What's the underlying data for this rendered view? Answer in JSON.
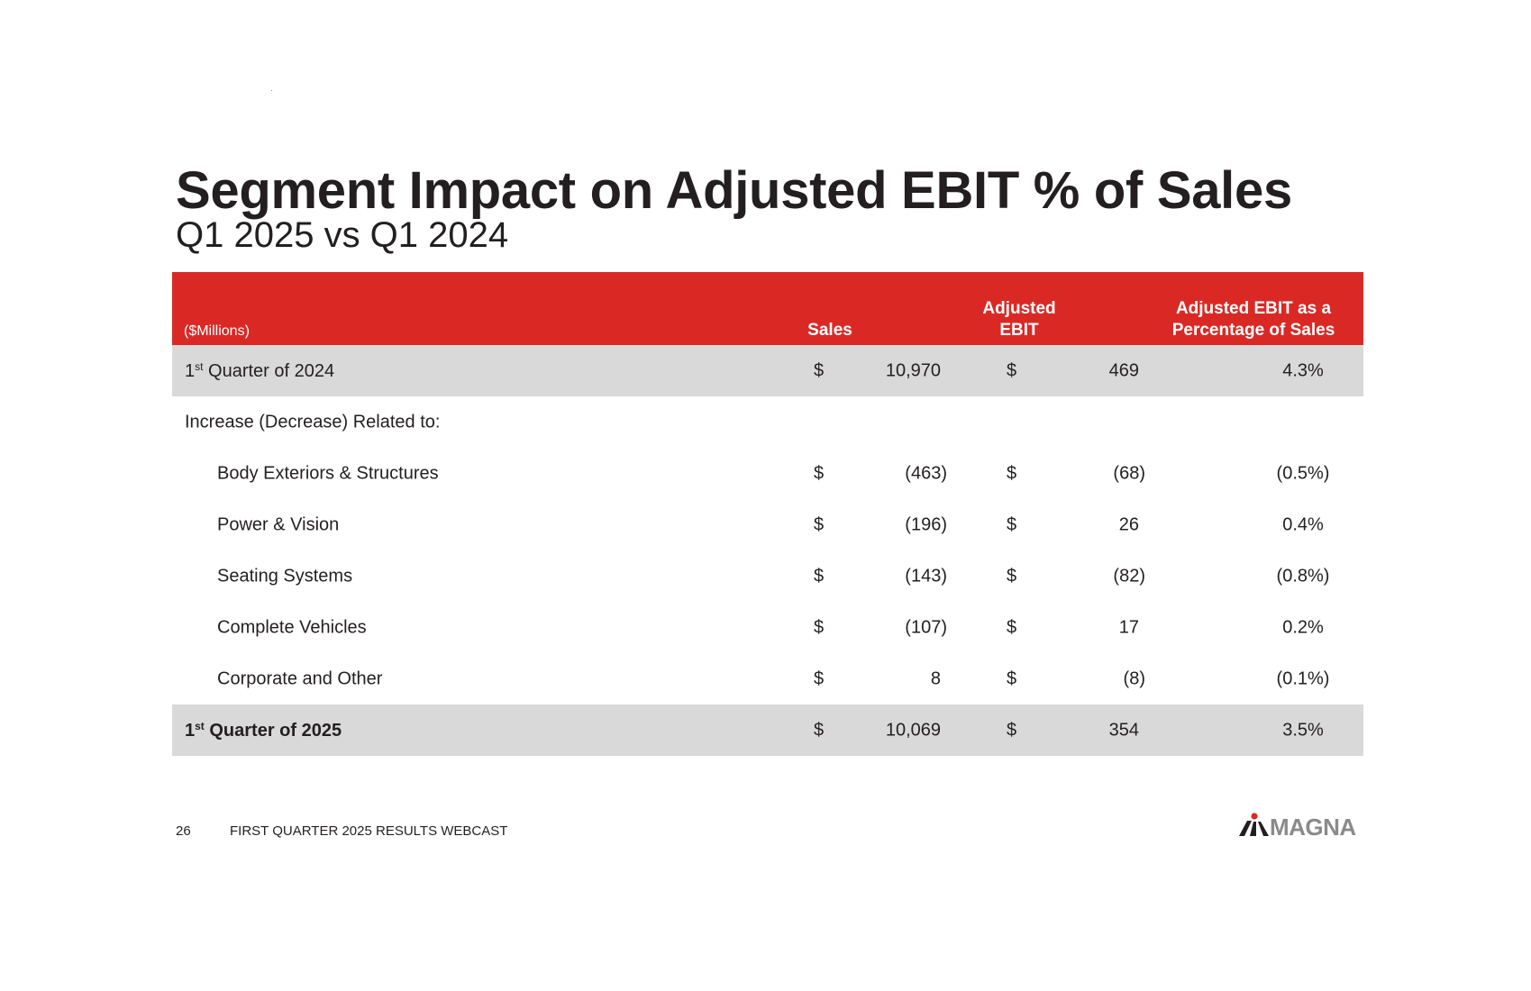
{
  "title": "Segment Impact on Adjusted EBIT % of Sales",
  "subtitle": "Q1 2025 vs Q1 2024",
  "table": {
    "units": "($Millions)",
    "col_sales": "Sales",
    "col_ebit_1": "Adjusted",
    "col_ebit_2": "EBIT",
    "col_pct_1": "Adjusted EBIT as a",
    "col_pct_2": "Percentage of Sales",
    "currency": "$",
    "rows": [
      {
        "label_num": "1",
        "label_sup": "st",
        "label_rest": " Quarter of 2024",
        "sales": "10,970",
        "ebit": "469",
        "pct": "4.3%"
      },
      {
        "label": "Increase (Decrease) Related to:"
      },
      {
        "label": "Body Exteriors & Structures",
        "sales": "(463)",
        "ebit": "(68)",
        "pct": "(0.5%)"
      },
      {
        "label": "Power & Vision",
        "sales": "(196)",
        "ebit": "26",
        "pct": "0.4%"
      },
      {
        "label": "Seating Systems",
        "sales": "(143)",
        "ebit": "(82)",
        "pct": "(0.8%)"
      },
      {
        "label": "Complete Vehicles",
        "sales": "(107)",
        "ebit": "17",
        "pct": "0.2%"
      },
      {
        "label": "Corporate and Other",
        "sales": "8",
        "ebit": "(8)",
        "pct": "(0.1%)"
      },
      {
        "label_num": "1",
        "label_sup": "st",
        "label_rest": " Quarter of 2025",
        "sales": "10,069",
        "ebit": "354",
        "pct": "3.5%"
      }
    ]
  },
  "footer": {
    "page_number": "26",
    "text": "FIRST QUARTER 2025 RESULTS WEBCAST"
  },
  "logo": {
    "text": "MAGNA",
    "colors": {
      "text": "#8a8a8a",
      "mark": "#231f20",
      "dot": "#da2925"
    }
  },
  "colors": {
    "header_bg": "#da2925",
    "shade_bg": "#d9d9d9",
    "text": "#231f20"
  }
}
